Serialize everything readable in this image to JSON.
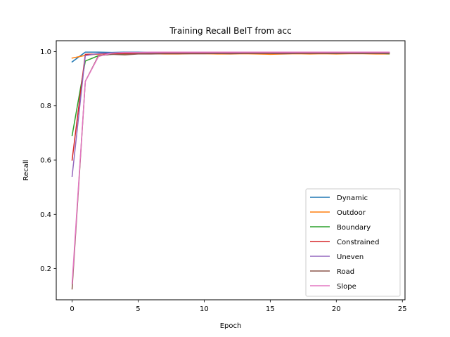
{
  "chart_data": {
    "type": "line",
    "title": "Training Recall BeIT from acc",
    "xlabel": "Epoch",
    "ylabel": "Recall",
    "xlim": [
      -1.2,
      25.2
    ],
    "ylim": [
      0.085,
      1.04
    ],
    "xticks": [
      0,
      5,
      10,
      15,
      20,
      25
    ],
    "yticks": [
      0.2,
      0.4,
      0.6,
      0.8,
      1.0
    ],
    "grid": false,
    "legend_position": "lower right",
    "x": [
      0,
      1,
      2,
      3,
      4,
      5,
      6,
      7,
      8,
      9,
      10,
      11,
      12,
      13,
      14,
      15,
      16,
      17,
      18,
      19,
      20,
      21,
      22,
      23,
      24
    ],
    "series": [
      {
        "name": "Dynamic",
        "color": "#1f77b4",
        "values": [
          0.962,
          0.998,
          0.998,
          0.997,
          0.998,
          0.998,
          0.997,
          0.998,
          0.998,
          0.997,
          0.997,
          0.998,
          0.997,
          0.997,
          0.997,
          0.997,
          0.997,
          0.998,
          0.997,
          0.997,
          0.998,
          0.997,
          0.997,
          0.997,
          0.997
        ]
      },
      {
        "name": "Outdoor",
        "color": "#ff7f0e",
        "values": [
          0.976,
          0.986,
          0.991,
          0.992,
          0.991,
          0.992,
          0.992,
          0.991,
          0.991,
          0.992,
          0.992,
          0.991,
          0.991,
          0.992,
          0.991,
          0.99,
          0.991,
          0.992,
          0.991,
          0.992,
          0.991,
          0.992,
          0.992,
          0.991,
          0.991
        ]
      },
      {
        "name": "Boundary",
        "color": "#2ca02c",
        "values": [
          0.69,
          0.965,
          0.985,
          0.99,
          0.992,
          0.993,
          0.992,
          0.994,
          0.993,
          0.993,
          0.993,
          0.995,
          0.994,
          0.994,
          0.994,
          0.994,
          0.994,
          0.994,
          0.994,
          0.994,
          0.993,
          0.994,
          0.993,
          0.994,
          0.992
        ]
      },
      {
        "name": "Constrained",
        "color": "#d62728",
        "values": [
          0.6,
          0.99,
          0.991,
          0.992,
          0.993,
          0.993,
          0.993,
          0.994,
          0.994,
          0.994,
          0.994,
          0.994,
          0.994,
          0.995,
          0.994,
          0.994,
          0.994,
          0.994,
          0.995,
          0.994,
          0.994,
          0.994,
          0.994,
          0.995,
          0.995
        ]
      },
      {
        "name": "Uneven",
        "color": "#9467bd",
        "values": [
          0.54,
          0.985,
          0.993,
          0.995,
          0.996,
          0.996,
          0.996,
          0.997,
          0.997,
          0.997,
          0.997,
          0.997,
          0.997,
          0.997,
          0.997,
          0.997,
          0.997,
          0.997,
          0.997,
          0.997,
          0.997,
          0.997,
          0.997,
          0.997,
          0.997
        ]
      },
      {
        "name": "Road",
        "color": "#8c564b",
        "values": [
          0.125,
          0.89,
          0.985,
          0.99,
          0.988,
          0.991,
          0.991,
          0.992,
          0.992,
          0.992,
          0.992,
          0.993,
          0.992,
          0.993,
          0.993,
          0.993,
          0.992,
          0.993,
          0.993,
          0.993,
          0.993,
          0.993,
          0.993,
          0.993,
          0.993
        ]
      },
      {
        "name": "Slope",
        "color": "#e377c2",
        "values": [
          0.145,
          0.89,
          0.982,
          0.994,
          0.997,
          0.997,
          0.998,
          0.998,
          0.998,
          0.998,
          0.998,
          0.998,
          0.998,
          0.998,
          0.998,
          0.998,
          0.998,
          0.998,
          0.998,
          0.998,
          0.998,
          0.998,
          0.998,
          0.998,
          0.998
        ]
      }
    ]
  }
}
